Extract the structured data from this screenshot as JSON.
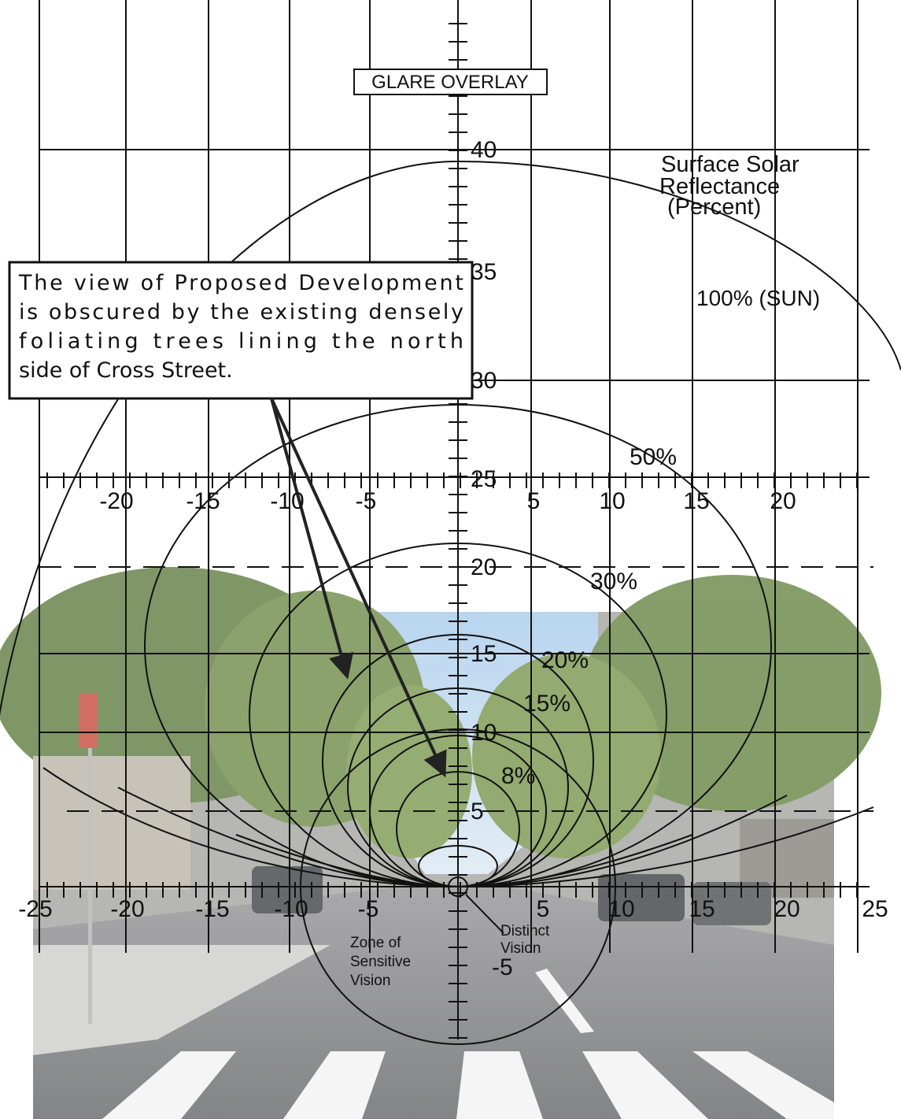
{
  "title": "GLARE OVERLAY",
  "legend_title": [
    "Surface Solar",
    "Reflectance",
    "(Percent)"
  ],
  "vertical_axis": [
    "40",
    "35",
    "30",
    "25",
    "20",
    "15",
    "10",
    "5",
    "-5"
  ],
  "upper_axis": [
    "-20",
    "-15",
    "-10",
    "-5",
    "5",
    "10",
    "15",
    "20"
  ],
  "lower_axis": [
    "-25",
    "-20",
    "-15",
    "-10",
    "-5",
    "5",
    "10",
    "15",
    "20",
    "25"
  ],
  "curve_labels": [
    "100% (SUN)",
    "50%",
    "30%",
    "20%",
    "15%",
    "8%"
  ],
  "zone_label": [
    "Zone of",
    "Sensitive",
    "Vision"
  ],
  "distinct_label": [
    "Distinct",
    "Vision"
  ],
  "callout": [
    "The view of Proposed Development",
    "is obscured by the existing densely",
    "foliating trees lining the north",
    "side of Cross Street."
  ]
}
